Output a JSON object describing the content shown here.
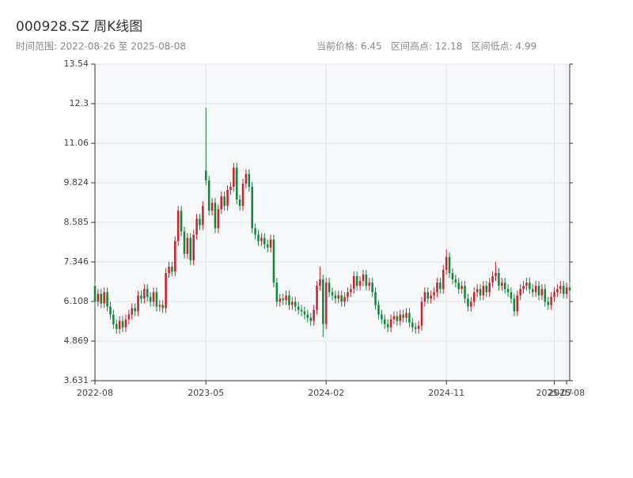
{
  "chart_data": {
    "type": "candlestick",
    "title": "000928.SZ 周K线图",
    "subtitle": "时间范围: 2022-08-26 至 2025-08-08",
    "stats": "当前价格: 6.45   区间高点: 12.18   区间低点: 4.99",
    "up_color": "#d0202a",
    "down_color": "#0b8a3a",
    "grid": true,
    "ylim": [
      3.631,
      13.54
    ],
    "yticks": [
      3.631,
      4.869,
      6.108,
      7.346,
      8.585,
      9.824,
      11.06,
      12.3,
      13.54
    ],
    "xticks": [
      "2022-08",
      "2023-05",
      "2024-02",
      "2024-11",
      "2025-07",
      "2025-08"
    ],
    "x": [
      "2022-08-26",
      "2022-09-02",
      "2022-09-09",
      "2022-09-16",
      "2022-09-23",
      "2022-09-30",
      "2022-10-07",
      "2022-10-14",
      "2022-10-21",
      "2022-10-28",
      "2022-11-04",
      "2022-11-11",
      "2022-11-18",
      "2022-11-25",
      "2022-12-02",
      "2022-12-09",
      "2022-12-16",
      "2022-12-23",
      "2022-12-30",
      "2023-01-06",
      "2023-01-13",
      "2023-01-20",
      "2023-01-27",
      "2023-02-03",
      "2023-02-10",
      "2023-02-17",
      "2023-02-24",
      "2023-03-03",
      "2023-03-10",
      "2023-03-17",
      "2023-03-24",
      "2023-03-31",
      "2023-04-07",
      "2023-04-14",
      "2023-04-21",
      "2023-04-28",
      "2023-05-05",
      "2023-05-12",
      "2023-05-19",
      "2023-05-26",
      "2023-06-02",
      "2023-06-09",
      "2023-06-16",
      "2023-06-23",
      "2023-06-30",
      "2023-07-07",
      "2023-07-14",
      "2023-07-21",
      "2023-07-28",
      "2023-08-04",
      "2023-08-11",
      "2023-08-18",
      "2023-08-25",
      "2023-09-01",
      "2023-09-08",
      "2023-09-15",
      "2023-09-22",
      "2023-09-29",
      "2023-10-06",
      "2023-10-13",
      "2023-10-20",
      "2023-10-27",
      "2023-11-03",
      "2023-11-10",
      "2023-11-17",
      "2023-11-24",
      "2023-12-01",
      "2023-12-08",
      "2023-12-15",
      "2023-12-22",
      "2023-12-29",
      "2024-01-05",
      "2024-01-12",
      "2024-01-19",
      "2024-01-26",
      "2024-02-02",
      "2024-02-09",
      "2024-02-16",
      "2024-02-23",
      "2024-03-01",
      "2024-03-08",
      "2024-03-15",
      "2024-03-22",
      "2024-03-29",
      "2024-04-05",
      "2024-04-12",
      "2024-04-19",
      "2024-04-26",
      "2024-05-03",
      "2024-05-10",
      "2024-05-17",
      "2024-05-24",
      "2024-05-31",
      "2024-06-07",
      "2024-06-14",
      "2024-06-21",
      "2024-06-28",
      "2024-07-05",
      "2024-07-12",
      "2024-07-19",
      "2024-07-26",
      "2024-08-02",
      "2024-08-09",
      "2024-08-16",
      "2024-08-23",
      "2024-08-30",
      "2024-09-06",
      "2024-09-13",
      "2024-09-20",
      "2024-09-27",
      "2024-10-04",
      "2024-10-11",
      "2024-10-18",
      "2024-10-25",
      "2024-11-01",
      "2024-11-08",
      "2024-11-15",
      "2024-11-22",
      "2024-11-29",
      "2024-12-06",
      "2024-12-13",
      "2024-12-20",
      "2024-12-27",
      "2025-01-03",
      "2025-01-10",
      "2025-01-17",
      "2025-01-24",
      "2025-01-31",
      "2025-02-07",
      "2025-02-14",
      "2025-02-21",
      "2025-02-28",
      "2025-03-07",
      "2025-03-14",
      "2025-03-21",
      "2025-03-28",
      "2025-04-04",
      "2025-04-11",
      "2025-04-18",
      "2025-04-25",
      "2025-05-02",
      "2025-05-09",
      "2025-05-16",
      "2025-05-23",
      "2025-05-30",
      "2025-06-06",
      "2025-06-13",
      "2025-06-20",
      "2025-06-27",
      "2025-07-04",
      "2025-07-11",
      "2025-07-18",
      "2025-07-25",
      "2025-08-01",
      "2025-08-08"
    ],
    "open": [
      6.6,
      6.1,
      6.35,
      6.05,
      6.4,
      5.95,
      5.7,
      5.4,
      5.25,
      5.5,
      5.3,
      5.55,
      5.7,
      5.9,
      5.8,
      6.3,
      6.2,
      6.5,
      6.25,
      6.1,
      6.4,
      5.95,
      6.0,
      5.9,
      7.0,
      7.2,
      7.05,
      8.0,
      8.95,
      8.3,
      7.6,
      8.1,
      7.4,
      8.2,
      8.7,
      8.5,
      10.2,
      9.9,
      8.95,
      9.2,
      8.4,
      9.0,
      9.4,
      9.1,
      9.6,
      9.7,
      10.3,
      9.3,
      9.1,
      9.8,
      10.1,
      9.7,
      8.4,
      8.2,
      8.0,
      8.1,
      7.9,
      7.8,
      8.05,
      6.7,
      6.1,
      6.2,
      6.15,
      6.3,
      6.0,
      6.1,
      5.95,
      5.85,
      5.8,
      5.7,
      5.6,
      5.5,
      5.85,
      6.6,
      6.8,
      5.4,
      6.7,
      6.4,
      6.3,
      6.2,
      6.3,
      6.1,
      6.25,
      6.4,
      6.5,
      6.9,
      6.6,
      6.75,
      6.95,
      6.6,
      6.7,
      6.4,
      6.0,
      5.7,
      5.55,
      5.4,
      5.3,
      5.55,
      5.65,
      5.5,
      5.7,
      5.6,
      5.75,
      5.45,
      5.3,
      5.25,
      5.35,
      6.1,
      6.4,
      6.2,
      6.3,
      6.4,
      6.7,
      6.5,
      7.1,
      7.5,
      7.0,
      6.8,
      6.7,
      6.5,
      6.6,
      6.2,
      5.95,
      6.1,
      6.4,
      6.5,
      6.3,
      6.6,
      6.4,
      6.7,
      6.9,
      7.0,
      6.6,
      6.7,
      6.5,
      6.4,
      6.2,
      5.8,
      6.3,
      6.5,
      6.6,
      6.7,
      6.5,
      6.4,
      6.6,
      6.3,
      6.5,
      6.1,
      6.0,
      6.25,
      6.4,
      6.5,
      6.6,
      6.35,
      6.55
    ],
    "high": [
      6.75,
      6.5,
      6.5,
      6.55,
      6.55,
      6.1,
      5.85,
      5.55,
      5.65,
      5.65,
      5.7,
      5.85,
      6.05,
      6.05,
      6.45,
      6.45,
      6.65,
      6.65,
      6.4,
      6.55,
      6.55,
      6.15,
      6.15,
      7.15,
      7.35,
      7.35,
      8.15,
      9.1,
      9.1,
      8.45,
      8.25,
      8.25,
      8.35,
      8.85,
      8.85,
      9.25,
      12.18,
      10.05,
      9.35,
      9.35,
      9.15,
      9.55,
      9.55,
      9.75,
      9.85,
      10.45,
      10.45,
      9.45,
      9.95,
      10.25,
      10.25,
      9.85,
      8.55,
      8.35,
      8.25,
      8.25,
      8.05,
      8.2,
      8.2,
      6.85,
      6.35,
      6.35,
      6.45,
      6.45,
      6.25,
      6.25,
      6.1,
      6.0,
      5.95,
      5.85,
      5.75,
      6.0,
      6.75,
      7.2,
      6.95,
      6.85,
      6.85,
      6.55,
      6.45,
      6.45,
      6.45,
      6.4,
      6.55,
      6.65,
      7.05,
      7.05,
      6.9,
      7.1,
      7.1,
      6.85,
      6.85,
      6.55,
      6.15,
      5.85,
      5.7,
      5.55,
      5.7,
      5.8,
      5.8,
      5.85,
      5.85,
      5.9,
      5.9,
      5.6,
      5.45,
      5.5,
      6.25,
      6.55,
      6.55,
      6.45,
      6.55,
      6.85,
      6.85,
      7.25,
      7.75,
      7.65,
      7.15,
      6.95,
      6.85,
      6.75,
      6.75,
      6.35,
      6.25,
      6.55,
      6.65,
      6.65,
      6.75,
      6.75,
      6.85,
      7.05,
      7.35,
      7.15,
      6.85,
      6.85,
      6.65,
      6.55,
      6.35,
      6.45,
      6.65,
      6.75,
      6.85,
      6.85,
      6.65,
      6.75,
      6.75,
      6.65,
      6.65,
      6.25,
      6.4,
      6.55,
      6.65,
      6.75,
      6.75,
      6.7,
      6.7
    ],
    "low": [
      5.95,
      5.95,
      5.9,
      5.9,
      5.8,
      5.55,
      5.25,
      5.1,
      5.1,
      5.15,
      5.15,
      5.4,
      5.55,
      5.65,
      5.65,
      6.05,
      6.05,
      6.1,
      5.95,
      5.95,
      5.8,
      5.8,
      5.75,
      5.75,
      6.85,
      6.9,
      6.9,
      7.85,
      8.15,
      7.45,
      7.45,
      7.25,
      7.25,
      8.05,
      8.35,
      8.35,
      9.75,
      8.8,
      8.8,
      8.25,
      8.25,
      8.85,
      8.95,
      8.95,
      9.45,
      9.55,
      9.15,
      8.95,
      8.95,
      9.65,
      9.55,
      8.25,
      8.05,
      7.85,
      7.85,
      7.75,
      7.65,
      7.65,
      6.55,
      5.95,
      5.95,
      6.0,
      6.0,
      5.85,
      5.85,
      5.8,
      5.7,
      5.65,
      5.55,
      5.45,
      5.35,
      5.35,
      5.7,
      6.45,
      4.99,
      5.25,
      6.25,
      6.15,
      6.05,
      6.05,
      5.95,
      5.95,
      6.1,
      6.25,
      6.35,
      6.45,
      6.45,
      6.6,
      6.45,
      6.45,
      6.25,
      5.85,
      5.55,
      5.4,
      5.25,
      5.15,
      5.15,
      5.4,
      5.35,
      5.35,
      5.45,
      5.45,
      5.3,
      5.15,
      5.1,
      5.1,
      5.2,
      5.95,
      6.05,
      6.05,
      6.15,
      6.25,
      6.35,
      6.35,
      6.95,
      6.85,
      6.65,
      6.55,
      6.35,
      6.35,
      6.05,
      5.8,
      5.8,
      5.95,
      6.25,
      6.15,
      6.15,
      6.25,
      6.25,
      6.55,
      6.75,
      6.45,
      6.45,
      6.35,
      6.25,
      6.05,
      5.65,
      5.65,
      6.15,
      6.35,
      6.45,
      6.35,
      6.25,
      6.25,
      6.15,
      6.15,
      5.95,
      5.85,
      5.85,
      6.1,
      6.25,
      6.35,
      6.2,
      6.2,
      6.3
    ],
    "close": [
      6.1,
      6.35,
      6.05,
      6.4,
      5.95,
      5.7,
      5.4,
      5.25,
      5.5,
      5.3,
      5.55,
      5.7,
      5.9,
      5.8,
      6.3,
      6.2,
      6.5,
      6.25,
      6.1,
      6.4,
      5.95,
      6.0,
      5.9,
      7.0,
      7.2,
      7.05,
      8.0,
      8.95,
      8.3,
      7.6,
      8.1,
      7.4,
      8.2,
      8.7,
      8.5,
      9.1,
      9.9,
      8.95,
      9.2,
      8.4,
      9.0,
      9.4,
      9.1,
      9.6,
      9.7,
      10.3,
      9.3,
      9.1,
      9.8,
      10.1,
      9.7,
      8.4,
      8.2,
      8.0,
      8.1,
      7.9,
      7.8,
      8.05,
      6.7,
      6.1,
      6.2,
      6.15,
      6.3,
      6.0,
      6.1,
      5.95,
      5.85,
      5.8,
      5.7,
      5.6,
      5.5,
      5.85,
      6.6,
      6.8,
      5.4,
      6.7,
      6.4,
      6.3,
      6.2,
      6.3,
      6.1,
      6.25,
      6.4,
      6.5,
      6.9,
      6.6,
      6.75,
      6.95,
      6.6,
      6.7,
      6.4,
      6.0,
      5.7,
      5.55,
      5.4,
      5.3,
      5.55,
      5.65,
      5.5,
      5.7,
      5.6,
      5.75,
      5.45,
      5.3,
      5.25,
      5.35,
      6.1,
      6.4,
      6.2,
      6.3,
      6.4,
      6.7,
      6.5,
      7.1,
      7.5,
      7.0,
      6.8,
      6.7,
      6.5,
      6.6,
      6.2,
      5.95,
      6.1,
      6.4,
      6.5,
      6.3,
      6.6,
      6.4,
      6.7,
      6.9,
      7.0,
      6.6,
      6.7,
      6.5,
      6.4,
      6.2,
      5.8,
      6.3,
      6.5,
      6.6,
      6.7,
      6.5,
      6.4,
      6.6,
      6.3,
      6.5,
      6.1,
      6.0,
      6.25,
      6.4,
      6.5,
      6.6,
      6.35,
      6.55,
      6.45
    ]
  }
}
